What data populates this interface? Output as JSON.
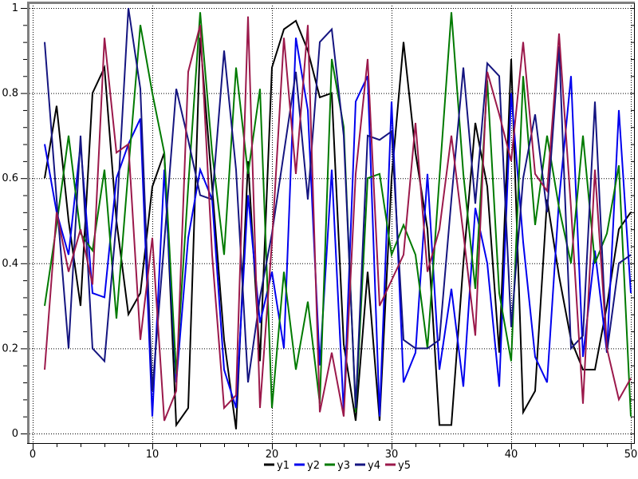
{
  "chart_data": {
    "type": "line",
    "title": "",
    "xlabel": "",
    "ylabel": "",
    "xlim": [
      -0.27,
      50.27
    ],
    "ylim": [
      -0.022,
      1.011
    ],
    "grid": "dotted at major ticks",
    "legend_position": "bottom-center",
    "frame": {
      "top_left_color": "#7f7f7f",
      "bottom_right_color": "#000000"
    },
    "x_tick_labels": [
      "0",
      "10",
      "20",
      "30",
      "40",
      "50"
    ],
    "x_major_ticks": [
      0,
      10,
      20,
      30,
      40,
      50
    ],
    "x_minor_step": 2,
    "y_tick_labels": [
      "0",
      "0.2",
      "0.4",
      "0.6",
      "0.8",
      "1"
    ],
    "y_major_ticks": [
      0,
      0.2,
      0.4,
      0.6,
      0.8,
      1
    ],
    "y_minor_step": 0.04,
    "x": [
      1,
      2,
      3,
      4,
      5,
      6,
      7,
      8,
      9,
      10,
      11,
      12,
      13,
      14,
      15,
      16,
      17,
      18,
      19,
      20,
      21,
      22,
      23,
      24,
      25,
      26,
      27,
      28,
      29,
      30,
      31,
      32,
      33,
      34,
      35,
      36,
      37,
      38,
      39,
      40,
      41,
      42,
      43,
      44,
      45,
      46,
      47,
      48,
      49,
      50
    ],
    "series": [
      {
        "name": "y1",
        "color": "#000000",
        "values": [
          0.6,
          0.77,
          0.5,
          0.3,
          0.8,
          0.86,
          0.5,
          0.28,
          0.33,
          0.58,
          0.66,
          0.02,
          0.06,
          0.93,
          0.58,
          0.22,
          0.01,
          0.64,
          0.17,
          0.86,
          0.95,
          0.97,
          0.9,
          0.79,
          0.8,
          0.21,
          0.03,
          0.38,
          0.03,
          0.6,
          0.92,
          0.66,
          0.48,
          0.02,
          0.02,
          0.4,
          0.73,
          0.58,
          0.19,
          0.88,
          0.05,
          0.1,
          0.55,
          0.37,
          0.22,
          0.15,
          0.15,
          0.3,
          0.48,
          0.52
        ]
      },
      {
        "name": "y2",
        "color": "#0000ee",
        "values": [
          0.68,
          0.52,
          0.42,
          0.68,
          0.33,
          0.32,
          0.6,
          0.68,
          0.74,
          0.04,
          0.62,
          0.12,
          0.46,
          0.62,
          0.55,
          0.15,
          0.06,
          0.56,
          0.26,
          0.38,
          0.2,
          0.93,
          0.76,
          0.16,
          0.62,
          0.05,
          0.78,
          0.84,
          0.04,
          0.78,
          0.12,
          0.19,
          0.61,
          0.15,
          0.34,
          0.11,
          0.53,
          0.4,
          0.11,
          0.8,
          0.45,
          0.18,
          0.12,
          0.55,
          0.84,
          0.18,
          0.43,
          0.19,
          0.76,
          0.33
        ]
      },
      {
        "name": "y3",
        "color": "#007a00",
        "values": [
          0.3,
          0.49,
          0.7,
          0.47,
          0.43,
          0.62,
          0.27,
          0.62,
          0.96,
          0.8,
          0.66,
          0.14,
          0.58,
          0.99,
          0.66,
          0.42,
          0.86,
          0.61,
          0.81,
          0.06,
          0.38,
          0.15,
          0.31,
          0.07,
          0.88,
          0.72,
          0.05,
          0.6,
          0.61,
          0.42,
          0.49,
          0.42,
          0.2,
          0.6,
          0.99,
          0.61,
          0.34,
          0.83,
          0.33,
          0.17,
          0.84,
          0.49,
          0.7,
          0.53,
          0.4,
          0.7,
          0.4,
          0.47,
          0.63,
          0.04
        ]
      },
      {
        "name": "y4",
        "color": "#151580",
        "values": [
          0.92,
          0.55,
          0.2,
          0.7,
          0.2,
          0.17,
          0.5,
          1.0,
          0.81,
          0.1,
          0.45,
          0.81,
          0.69,
          0.56,
          0.55,
          0.9,
          0.62,
          0.12,
          0.32,
          0.47,
          0.66,
          0.85,
          0.55,
          0.92,
          0.95,
          0.7,
          0.06,
          0.7,
          0.69,
          0.71,
          0.22,
          0.2,
          0.2,
          0.22,
          0.55,
          0.86,
          0.54,
          0.87,
          0.84,
          0.25,
          0.6,
          0.75,
          0.52,
          0.91,
          0.2,
          0.23,
          0.78,
          0.19,
          0.4,
          0.42
        ]
      },
      {
        "name": "y5",
        "color": "#9b194b",
        "values": [
          0.15,
          0.52,
          0.38,
          0.48,
          0.35,
          0.93,
          0.66,
          0.68,
          0.22,
          0.46,
          0.03,
          0.1,
          0.85,
          0.96,
          0.42,
          0.06,
          0.09,
          0.98,
          0.06,
          0.45,
          0.93,
          0.61,
          0.96,
          0.05,
          0.19,
          0.04,
          0.61,
          0.88,
          0.3,
          0.36,
          0.42,
          0.73,
          0.38,
          0.48,
          0.7,
          0.47,
          0.23,
          0.85,
          0.75,
          0.64,
          0.92,
          0.61,
          0.57,
          0.94,
          0.53,
          0.07,
          0.62,
          0.2,
          0.08,
          0.13
        ]
      }
    ],
    "legend_labels": [
      "y1",
      "y2",
      "y3",
      "y4",
      "y5"
    ]
  }
}
